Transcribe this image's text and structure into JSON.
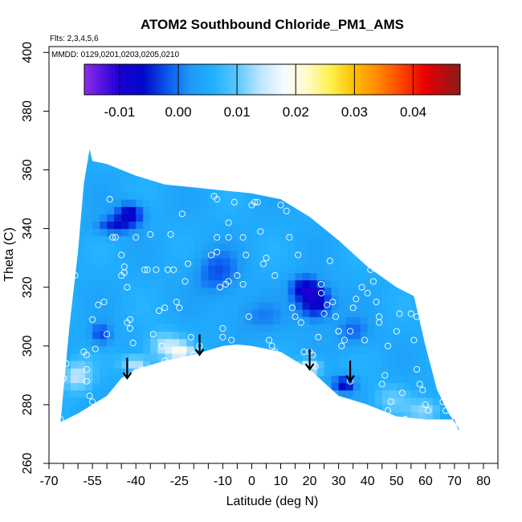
{
  "chart_data": {
    "type": "heatmap",
    "title": "ATOM2 Southbound Chloride_PM1_AMS",
    "flights_note": "Flts: 2,3,4,5,6",
    "dates_note": "MMDD: 0129,0201,0203,0205,0210",
    "xlabel": "Latitude (deg N)",
    "ylabel": "Theta (C)",
    "xlim": [
      -70,
      85
    ],
    "ylim": [
      260,
      402
    ],
    "x_ticks": [
      -70,
      -55,
      -40,
      -25,
      -10,
      0,
      10,
      20,
      30,
      40,
      50,
      60,
      70,
      80
    ],
    "x_tick_labels": [
      "-70",
      "-55",
      "-40",
      "-25",
      "-10",
      "0",
      "10",
      "20",
      "30",
      "40",
      "50",
      "60",
      "70",
      "80"
    ],
    "x_minor_ticks": [
      -65,
      -60,
      -50,
      -45,
      -35,
      -30,
      -20,
      -15,
      -5,
      5,
      15,
      25,
      35,
      45,
      55,
      65,
      75,
      85
    ],
    "y_ticks": [
      260,
      280,
      300,
      320,
      340,
      360,
      380,
      400
    ],
    "y_tick_labels": [
      "260",
      "280",
      "300",
      "320",
      "340",
      "360",
      "380",
      "400"
    ],
    "colorbar": {
      "range": [
        -0.016,
        0.048
      ],
      "ticks": [
        -0.01,
        0.0,
        0.01,
        0.02,
        0.03,
        0.04
      ],
      "tick_labels": [
        "-0.01",
        "0.00",
        "0.01",
        "0.02",
        "0.03",
        "0.04"
      ],
      "divisions": [
        -0.01,
        0.0,
        0.01,
        0.02,
        0.03,
        0.04
      ],
      "stops": [
        {
          "v": -0.016,
          "c": "#8f2be8"
        },
        {
          "v": -0.01,
          "c": "#1a00d6"
        },
        {
          "v": -0.006,
          "c": "#0008c8"
        },
        {
          "v": -0.002,
          "c": "#0a55f0"
        },
        {
          "v": 0.002,
          "c": "#1d9af6"
        },
        {
          "v": 0.006,
          "c": "#22b0ff"
        },
        {
          "v": 0.01,
          "c": "#5ac8ff"
        },
        {
          "v": 0.014,
          "c": "#bfe6ff"
        },
        {
          "v": 0.018,
          "c": "#f6fbff"
        },
        {
          "v": 0.022,
          "c": "#fffbc8"
        },
        {
          "v": 0.026,
          "c": "#fff04a"
        },
        {
          "v": 0.03,
          "c": "#ffbd00"
        },
        {
          "v": 0.034,
          "c": "#ff8800"
        },
        {
          "v": 0.038,
          "c": "#ff4400"
        },
        {
          "v": 0.042,
          "c": "#e80000"
        },
        {
          "v": 0.048,
          "c": "#8c1a1a"
        }
      ]
    },
    "domain_polygon_deg": [
      [
        -66,
        274
      ],
      [
        -63,
        306
      ],
      [
        -60,
        332
      ],
      [
        -58,
        355
      ],
      [
        -56,
        367
      ],
      [
        -55,
        363
      ],
      [
        -50,
        362
      ],
      [
        -40,
        358
      ],
      [
        -30,
        355
      ],
      [
        -20,
        354
      ],
      [
        -10,
        353
      ],
      [
        0,
        352
      ],
      [
        10,
        350
      ],
      [
        20,
        344
      ],
      [
        30,
        336
      ],
      [
        40,
        327
      ],
      [
        50,
        320
      ],
      [
        56,
        317
      ],
      [
        60,
        300
      ],
      [
        64,
        285
      ],
      [
        68,
        277
      ],
      [
        71.5,
        272
      ],
      [
        71.5,
        271
      ],
      [
        70,
        275
      ],
      [
        60,
        275
      ],
      [
        50,
        276
      ],
      [
        40,
        280
      ],
      [
        30,
        283
      ],
      [
        20,
        292
      ],
      [
        10,
        298
      ],
      [
        0,
        300
      ],
      [
        -5,
        300.5
      ],
      [
        -10,
        300
      ],
      [
        -20,
        297
      ],
      [
        -30,
        295
      ],
      [
        -40,
        292
      ],
      [
        -45,
        289
      ],
      [
        -50,
        283
      ],
      [
        -55,
        280
      ],
      [
        -60,
        277
      ],
      [
        -66,
        274
      ]
    ],
    "background_value": 0.005,
    "anomalies": [
      {
        "lat": -42,
        "theta": 345,
        "value": -0.008,
        "r_lat": 5,
        "r_theta": 4
      },
      {
        "lat": -48,
        "theta": 341,
        "value": -0.004,
        "r_lat": 6,
        "r_theta": 3
      },
      {
        "lat": 22,
        "theta": 315,
        "value": -0.009,
        "r_lat": 6,
        "r_theta": 6
      },
      {
        "lat": 18,
        "theta": 320,
        "value": -0.005,
        "r_lat": 5,
        "r_theta": 4
      },
      {
        "lat": 32,
        "theta": 287,
        "value": -0.007,
        "r_lat": 4,
        "r_theta": 3
      },
      {
        "lat": -12,
        "theta": 325,
        "value": -0.002,
        "r_lat": 8,
        "r_theta": 8
      },
      {
        "lat": -52,
        "theta": 304,
        "value": -0.003,
        "r_lat": 4,
        "r_theta": 4
      },
      {
        "lat": 35,
        "theta": 305,
        "value": -0.001,
        "r_lat": 6,
        "r_theta": 5
      },
      {
        "lat": 2,
        "theta": 310,
        "value": 0.001,
        "r_lat": 10,
        "r_theta": 6
      },
      {
        "lat": -30,
        "theta": 300,
        "value": 0.014,
        "r_lat": 6,
        "r_theta": 5
      },
      {
        "lat": -24,
        "theta": 298,
        "value": 0.016,
        "r_lat": 4,
        "r_theta": 3
      },
      {
        "lat": -40,
        "theta": 294,
        "value": 0.015,
        "r_lat": 5,
        "r_theta": 3
      },
      {
        "lat": 20,
        "theta": 293,
        "value": 0.018,
        "r_lat": 4,
        "r_theta": 3
      },
      {
        "lat": -62,
        "theta": 290,
        "value": 0.012,
        "r_lat": 4,
        "r_theta": 5
      },
      {
        "lat": 48,
        "theta": 282,
        "value": 0.01,
        "r_lat": 6,
        "r_theta": 5
      },
      {
        "lat": 60,
        "theta": 278,
        "value": 0.012,
        "r_lat": 6,
        "r_theta": 4
      },
      {
        "lat": -58,
        "theta": 290,
        "value": 0.01,
        "r_lat": 4,
        "r_theta": 6
      }
    ],
    "arrows": [
      {
        "lat": -43,
        "theta_from": 296,
        "theta_to": 289
      },
      {
        "lat": -18,
        "theta_from": 304,
        "theta_to": 297
      },
      {
        "lat": 20,
        "theta_from": 299,
        "theta_to": 292
      },
      {
        "lat": 34,
        "theta_from": 295,
        "theta_to": 288
      }
    ],
    "sample_points": [
      [
        -65,
        289
      ],
      [
        -66,
        275
      ],
      [
        -64,
        294
      ],
      [
        -61,
        324
      ],
      [
        -58,
        298
      ],
      [
        -57,
        297
      ],
      [
        -57,
        292
      ],
      [
        -57,
        288
      ],
      [
        -56,
        283
      ],
      [
        -55,
        281
      ],
      [
        -55,
        309
      ],
      [
        -54,
        299
      ],
      [
        -53,
        314
      ],
      [
        -51,
        315
      ],
      [
        -50,
        304
      ],
      [
        -49,
        350
      ],
      [
        -48,
        337
      ],
      [
        -47,
        337
      ],
      [
        -45,
        331
      ],
      [
        -45,
        324
      ],
      [
        -44,
        327
      ],
      [
        -44,
        325
      ],
      [
        -43,
        320
      ],
      [
        -43,
        308
      ],
      [
        -42,
        306
      ],
      [
        -42,
        309
      ],
      [
        -41,
        301
      ],
      [
        -40,
        337
      ],
      [
        -40,
        291
      ],
      [
        -38,
        292
      ],
      [
        -37,
        326
      ],
      [
        -36,
        326
      ],
      [
        -35,
        338
      ],
      [
        -34,
        304
      ],
      [
        -33,
        326
      ],
      [
        -32,
        312
      ],
      [
        -31,
        300
      ],
      [
        -30,
        295
      ],
      [
        -30,
        313
      ],
      [
        -29,
        326
      ],
      [
        -28,
        338
      ],
      [
        -27,
        326
      ],
      [
        -26,
        315
      ],
      [
        -25,
        313
      ],
      [
        -24,
        345
      ],
      [
        -23,
        322
      ],
      [
        -22,
        328
      ],
      [
        -21,
        303
      ],
      [
        -20,
        297
      ],
      [
        -19,
        298
      ],
      [
        -18,
        300
      ],
      [
        -17,
        296
      ],
      [
        -14,
        331
      ],
      [
        -13,
        351
      ],
      [
        -12,
        350
      ],
      [
        -12,
        337
      ],
      [
        -12,
        332
      ],
      [
        -11,
        320
      ],
      [
        -10,
        306
      ],
      [
        -10,
        303
      ],
      [
        -9,
        321
      ],
      [
        -8,
        342
      ],
      [
        -8,
        337
      ],
      [
        -8,
        322
      ],
      [
        -7,
        302
      ],
      [
        -6,
        349
      ],
      [
        -5,
        324
      ],
      [
        -3,
        337
      ],
      [
        -3,
        321
      ],
      [
        -2,
        331
      ],
      [
        -1,
        310
      ],
      [
        0,
        348
      ],
      [
        1,
        349
      ],
      [
        2,
        349
      ],
      [
        3,
        339
      ],
      [
        4,
        328
      ],
      [
        5,
        330
      ],
      [
        6,
        302
      ],
      [
        7,
        300
      ],
      [
        8,
        324
      ],
      [
        8,
        298
      ],
      [
        10,
        348
      ],
      [
        12,
        346
      ],
      [
        13,
        337
      ],
      [
        14,
        313
      ],
      [
        15,
        310
      ],
      [
        16,
        331
      ],
      [
        17,
        308
      ],
      [
        18,
        298
      ],
      [
        20,
        298
      ],
      [
        21,
        297
      ],
      [
        22,
        293
      ],
      [
        23,
        303
      ],
      [
        24,
        321
      ],
      [
        24,
        318
      ],
      [
        25,
        311
      ],
      [
        26,
        314
      ],
      [
        27,
        329
      ],
      [
        28,
        315
      ],
      [
        29,
        310
      ],
      [
        30,
        305
      ],
      [
        30,
        305
      ],
      [
        31,
        300
      ],
      [
        32,
        302
      ],
      [
        34,
        305
      ],
      [
        34,
        288
      ],
      [
        35,
        313
      ],
      [
        36,
        316
      ],
      [
        38,
        320
      ],
      [
        39,
        302
      ],
      [
        40,
        318
      ],
      [
        41,
        326
      ],
      [
        42,
        322
      ],
      [
        43,
        315
      ],
      [
        44,
        310
      ],
      [
        44,
        308
      ],
      [
        45,
        287
      ],
      [
        46,
        290
      ],
      [
        47,
        300
      ],
      [
        47,
        278
      ],
      [
        48,
        281
      ],
      [
        50,
        305
      ],
      [
        51,
        311
      ],
      [
        52,
        284
      ],
      [
        53,
        275
      ],
      [
        55,
        311
      ],
      [
        56,
        302
      ],
      [
        57,
        310
      ],
      [
        57,
        292
      ],
      [
        58,
        287
      ],
      [
        59,
        285
      ],
      [
        60,
        280
      ],
      [
        61,
        278
      ],
      [
        62,
        303
      ],
      [
        63,
        313
      ],
      [
        64,
        311
      ],
      [
        66,
        281
      ],
      [
        67,
        278
      ]
    ]
  }
}
